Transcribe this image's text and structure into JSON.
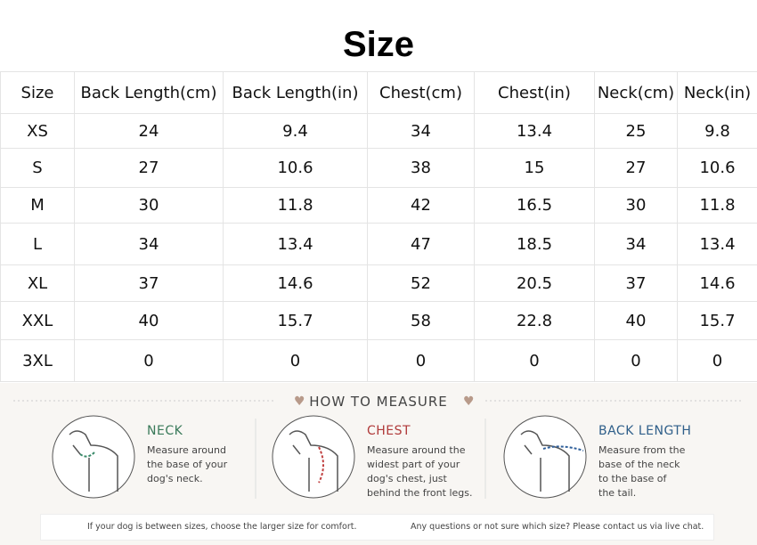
{
  "header": {
    "title": "Size"
  },
  "table": {
    "columns": [
      "Size",
      "Back Length(cm)",
      "Back Length(in)",
      "Chest(cm)",
      "Chest(in)",
      "Neck(cm)",
      "Neck(in)"
    ],
    "rows": [
      [
        "XS",
        "24",
        "9.4",
        "34",
        "13.4",
        "25",
        "9.8"
      ],
      [
        "S",
        "27",
        "10.6",
        "38",
        "15",
        "27",
        "10.6"
      ],
      [
        "M",
        "30",
        "11.8",
        "42",
        "16.5",
        "30",
        "11.8"
      ],
      [
        "L",
        "34",
        "13.4",
        "47",
        "18.5",
        "34",
        "13.4"
      ],
      [
        "XL",
        "37",
        "14.6",
        "52",
        "20.5",
        "37",
        "14.6"
      ],
      [
        "XXL",
        "40",
        "15.7",
        "58",
        "22.8",
        "40",
        "15.7"
      ],
      [
        "3XL",
        "0",
        "0",
        "0",
        "0",
        "0",
        "0"
      ]
    ]
  },
  "measure": {
    "title": "HOW TO MEASURE",
    "items": [
      {
        "title": "NECK",
        "lines": [
          "Measure around",
          "the base of your",
          "dog's neck."
        ]
      },
      {
        "title": "CHEST",
        "lines": [
          "Measure around the",
          "widest part of your",
          "dog's chest, just",
          "behind the front legs."
        ]
      },
      {
        "title": "BACK LENGTH",
        "lines": [
          "Measure from the",
          "base of the neck",
          "to the base of",
          "the tail."
        ]
      }
    ],
    "notes": [
      "If your dog is between sizes, choose the larger size for comfort.",
      "Any questions or not sure which size? Please contact us via live chat."
    ]
  }
}
